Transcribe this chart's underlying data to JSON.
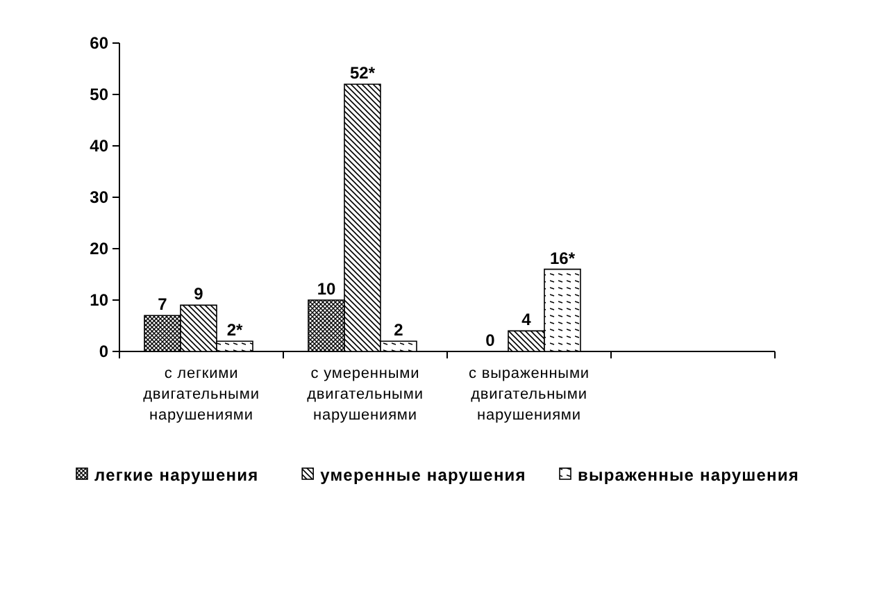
{
  "chart_data": {
    "type": "bar",
    "categories": [
      "с легкими двигательными нарушениями",
      "с умеренными двигательными нарушениями",
      "с выраженными двигательными нарушениями",
      null
    ],
    "series": [
      {
        "name": "легкие нарушения",
        "color": "#000000",
        "values": [
          7,
          10,
          0,
          null
        ],
        "value_labels": [
          "7",
          "10",
          "0",
          null
        ]
      },
      {
        "name": "умеренные нарушения",
        "color": "#000000",
        "values": [
          9,
          52,
          4,
          null
        ],
        "value_labels": [
          "9",
          "52*",
          "4",
          null
        ]
      },
      {
        "name": "выраженные нарушения",
        "color": "#000000",
        "values": [
          2,
          2,
          16,
          null
        ],
        "value_labels": [
          "2*",
          "2",
          "16*",
          null
        ]
      }
    ],
    "ylim": [
      0,
      60
    ],
    "yticks": [
      0,
      10,
      20,
      30,
      40,
      50,
      60
    ],
    "grid": false,
    "legend": "bottom"
  }
}
